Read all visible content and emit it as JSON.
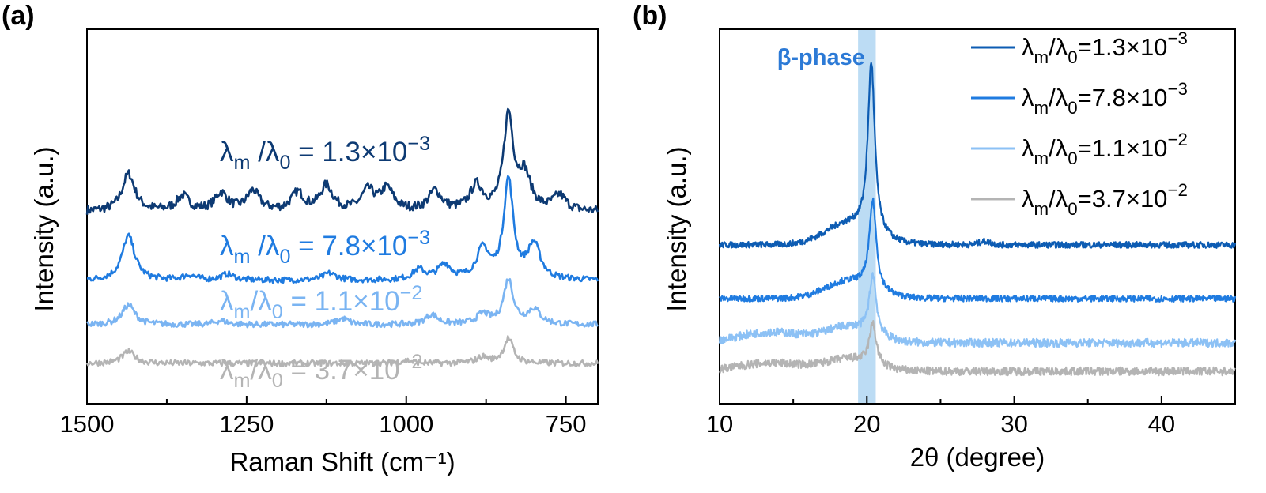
{
  "chart_data": [
    {
      "panel": "(a)",
      "type": "line",
      "xlabel": "Raman Shift (cm⁻¹)",
      "ylabel": "Intensity (a.u.)",
      "xlim": [
        1500,
        700
      ],
      "x_reversed": true,
      "x_ticks": [
        1500,
        1250,
        1000,
        750
      ],
      "y_ticks_shown": false,
      "grid": false,
      "series": [
        {
          "label_pre": "λ",
          "label_sub1": "m",
          "label_mid": " /λ",
          "label_sub2": "0",
          "label_post": " = 1.3×10",
          "label_exp": "−3",
          "color": "#0d3a73",
          "offset": 268,
          "amplitude": 1.0,
          "peaks": [
            [
              1435,
              0.38
            ],
            [
              1350,
              0.15
            ],
            [
              1290,
              0.18
            ],
            [
              1240,
              0.2
            ],
            [
              1170,
              0.18
            ],
            [
              1125,
              0.25
            ],
            [
              1060,
              0.2
            ],
            [
              1030,
              0.22
            ],
            [
              955,
              0.2
            ],
            [
              890,
              0.25
            ],
            [
              840,
              0.95
            ],
            [
              815,
              0.35
            ],
            [
              760,
              0.15
            ]
          ]
        },
        {
          "label_pre": "λ",
          "label_sub1": "m",
          "label_mid": " /λ",
          "label_sub2": "0",
          "label_post": " = 7.8×10",
          "label_exp": "−3",
          "color": "#1f7be0",
          "offset": 355,
          "amplitude": 1.0,
          "peaks": [
            [
              1435,
              0.45
            ],
            [
              1340,
              0.05
            ],
            [
              1280,
              0.06
            ],
            [
              1120,
              0.07
            ],
            [
              980,
              0.1
            ],
            [
              940,
              0.15
            ],
            [
              880,
              0.3
            ],
            [
              840,
              1.0
            ],
            [
              800,
              0.35
            ]
          ]
        },
        {
          "label_pre": "λ",
          "label_sub1": "m",
          "label_mid": "/λ",
          "label_sub2": "0",
          "label_post": " = 1.1×10",
          "label_exp": "−2",
          "color": "#7ab4f2",
          "offset": 411,
          "amplitude": 1.0,
          "peaks": [
            [
              1435,
              0.2
            ],
            [
              1290,
              0.04
            ],
            [
              1100,
              0.06
            ],
            [
              960,
              0.1
            ],
            [
              880,
              0.1
            ],
            [
              840,
              0.45
            ],
            [
              800,
              0.15
            ]
          ]
        },
        {
          "label_pre": "λ",
          "label_sub1": "m",
          "label_mid": "/λ",
          "label_sub2": "0",
          "label_post": " = 3.7×10",
          "label_exp": "−2",
          "color": "#b4b4b4",
          "offset": 460,
          "amplitude": 1.0,
          "peaks": [
            [
              1435,
              0.12
            ],
            [
              1000,
              0.03
            ],
            [
              880,
              0.06
            ],
            [
              840,
              0.25
            ]
          ]
        }
      ]
    },
    {
      "panel": "(b)",
      "type": "line",
      "xlabel": "2θ (degree)",
      "ylabel": "Intensity (a.u.)",
      "xlim": [
        10,
        45
      ],
      "x_ticks": [
        10,
        20,
        30,
        40
      ],
      "y_ticks_shown": false,
      "grid": false,
      "legend_position": "top-right",
      "highlight_band": {
        "label": "β-phase",
        "x_range": [
          19.4,
          20.6
        ],
        "color": "#bcdcf4"
      },
      "series": [
        {
          "label_pre": "λ",
          "label_sub1": "m",
          "label_mid": "/λ",
          "label_sub2": "0",
          "label_post": "=1.3×10",
          "label_exp": "−3",
          "color": "#0d5cb3",
          "offset": 310,
          "peak_center": 20.3,
          "peak_height": 1.0,
          "halo_height": 0.12,
          "noise": 0.015
        },
        {
          "label_pre": "λ",
          "label_sub1": "m",
          "label_mid": "/λ",
          "label_sub2": "0",
          "label_post": "=7.8×10",
          "label_exp": "−3",
          "color": "#1f7be0",
          "offset": 378,
          "peak_center": 20.4,
          "peak_height": 0.52,
          "halo_height": 0.1,
          "noise": 0.015
        },
        {
          "label_pre": "λ",
          "label_sub1": "m",
          "label_mid": "/λ",
          "label_sub2": "0",
          "label_post": "=1.1×10",
          "label_exp": "−2",
          "color": "#8cc1f5",
          "offset": 434,
          "peak_center": 20.4,
          "peak_height": 0.35,
          "halo_height": 0.09,
          "noise": 0.02
        },
        {
          "label_pre": "λ",
          "label_sub1": "m",
          "label_mid": "/λ",
          "label_sub2": "0",
          "label_post": "=3.7×10",
          "label_exp": "−2",
          "color": "#b4b4b4",
          "offset": 470,
          "peak_center": 20.4,
          "peak_height": 0.24,
          "halo_height": 0.07,
          "noise": 0.02
        }
      ]
    }
  ]
}
